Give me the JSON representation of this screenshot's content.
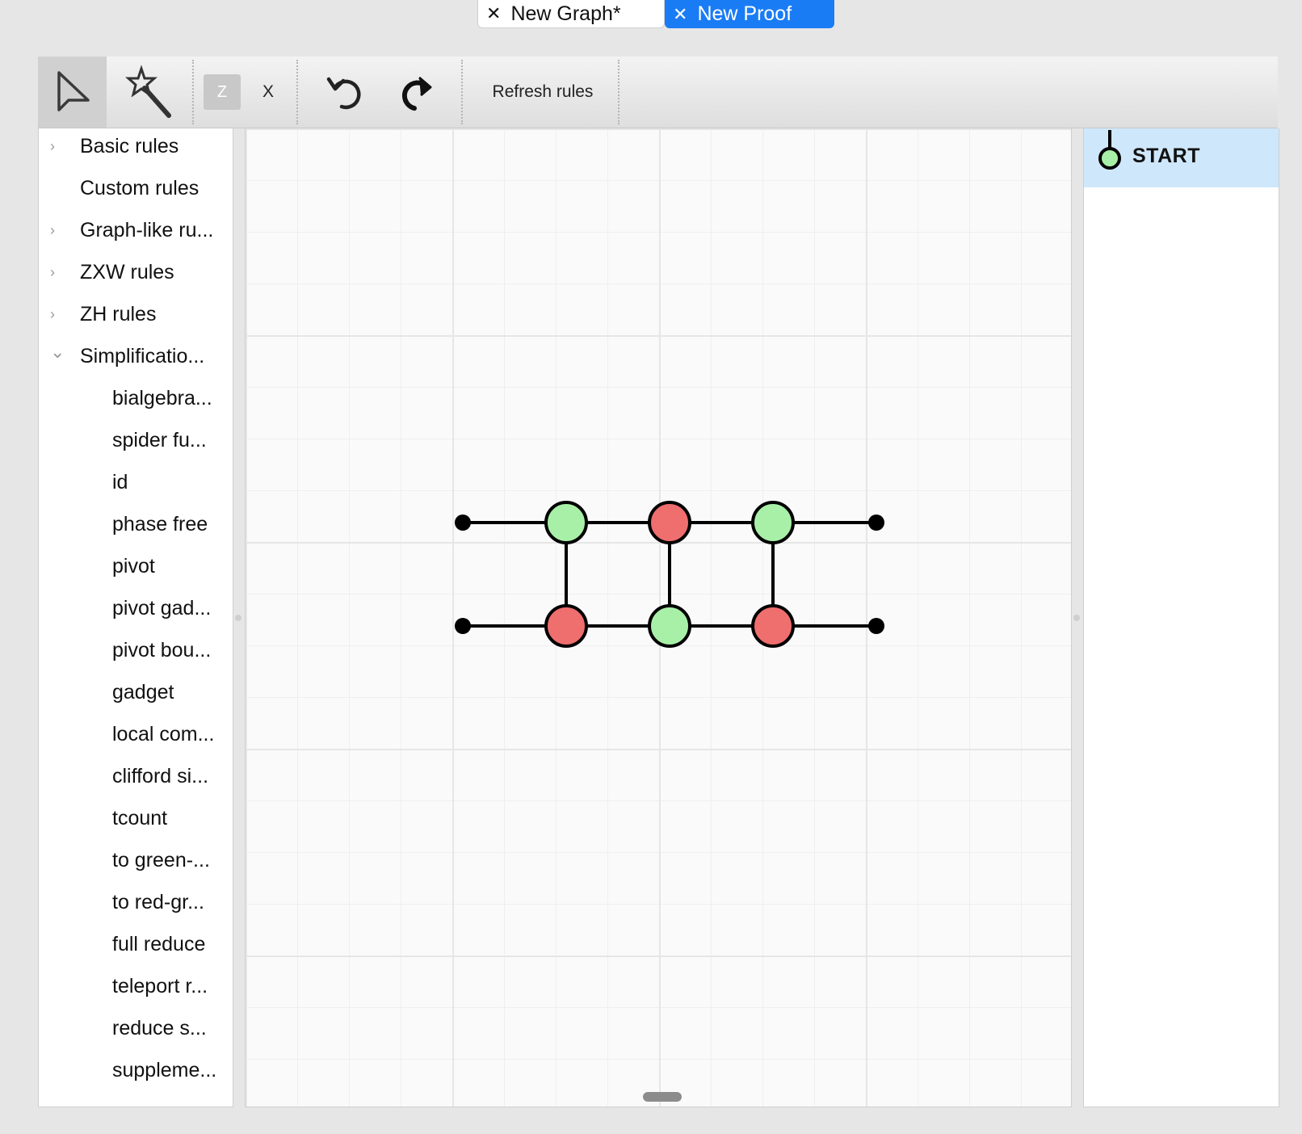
{
  "tabs": [
    {
      "label": "New Graph*",
      "active": false
    },
    {
      "label": "New Proof",
      "active": true
    }
  ],
  "toolbar": {
    "select_icon": "cursor-arrow-icon",
    "magic_icon": "magic-wand-icon",
    "z_label": "Z",
    "x_label": "X",
    "undo_icon": "undo-icon",
    "redo_icon": "redo-icon",
    "refresh_label": "Refresh rules"
  },
  "rules": [
    {
      "label": "Basic rules",
      "expandable": true,
      "expanded": false,
      "level": 0
    },
    {
      "label": "Custom rules",
      "expandable": false,
      "level": 0
    },
    {
      "label": "Graph-like ru...",
      "expandable": true,
      "expanded": false,
      "level": 0
    },
    {
      "label": "ZXW rules",
      "expandable": true,
      "expanded": false,
      "level": 0
    },
    {
      "label": "ZH rules",
      "expandable": true,
      "expanded": false,
      "level": 0
    },
    {
      "label": "Simplificatio...",
      "expandable": true,
      "expanded": true,
      "level": 0
    },
    {
      "label": "bialgebra...",
      "level": 1
    },
    {
      "label": "spider fu...",
      "level": 1
    },
    {
      "label": "id",
      "level": 1
    },
    {
      "label": "phase free",
      "level": 1
    },
    {
      "label": "pivot",
      "level": 1
    },
    {
      "label": "pivot gad...",
      "level": 1
    },
    {
      "label": "pivot bou...",
      "level": 1
    },
    {
      "label": "gadget",
      "level": 1
    },
    {
      "label": "local com...",
      "level": 1
    },
    {
      "label": "clifford si...",
      "level": 1
    },
    {
      "label": "tcount",
      "level": 1
    },
    {
      "label": "to green-...",
      "level": 1
    },
    {
      "label": "to red-gr...",
      "level": 1
    },
    {
      "label": "full reduce",
      "level": 1
    },
    {
      "label": "teleport r...",
      "level": 1
    },
    {
      "label": "reduce s...",
      "level": 1
    },
    {
      "label": "suppleme...",
      "level": 1
    }
  ],
  "graph": {
    "colors": {
      "green": "#a8f0a8",
      "red": "#ef6e6e",
      "boundary": "#000000",
      "edge": "#000000"
    },
    "nodes": [
      {
        "id": "b1",
        "type": "boundary"
      },
      {
        "id": "g1",
        "type": "Z"
      },
      {
        "id": "r1",
        "type": "X"
      },
      {
        "id": "g2",
        "type": "Z"
      },
      {
        "id": "b2",
        "type": "boundary"
      },
      {
        "id": "b3",
        "type": "boundary"
      },
      {
        "id": "r2",
        "type": "X"
      },
      {
        "id": "g3",
        "type": "Z"
      },
      {
        "id": "r3",
        "type": "X"
      },
      {
        "id": "b4",
        "type": "boundary"
      }
    ],
    "edges": [
      [
        "b1",
        "g1"
      ],
      [
        "g1",
        "r1"
      ],
      [
        "r1",
        "g2"
      ],
      [
        "g2",
        "b2"
      ],
      [
        "b3",
        "r2"
      ],
      [
        "r2",
        "g3"
      ],
      [
        "g3",
        "r3"
      ],
      [
        "r3",
        "b4"
      ],
      [
        "g1",
        "r2"
      ],
      [
        "r1",
        "g3"
      ],
      [
        "g2",
        "r3"
      ]
    ]
  },
  "proof_steps": [
    {
      "label": "START",
      "selected": true,
      "icon": "green-spider-icon"
    }
  ]
}
